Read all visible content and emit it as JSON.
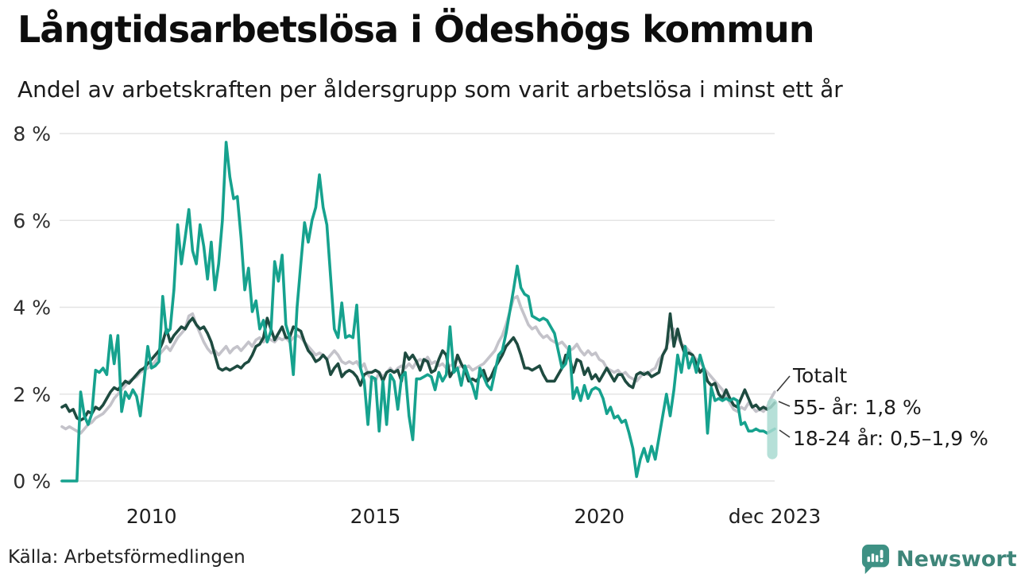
{
  "header": {
    "title": "Långtidsarbetslösa i Ödeshögs kommun",
    "subtitle": "Andel av arbetskraften per åldersgrupp som varit arbetslösa i minst ett år"
  },
  "footer": {
    "source": "Källa: Arbetsförmedlingen",
    "brand_name": "Newsworthy",
    "brand_icon": "newsworthy-pin-icon",
    "brand_color": "#3e9184",
    "brand_text_color": "#3e8579"
  },
  "annotations": {
    "totalt": "Totalt",
    "age55": "55- år: 1,8 %",
    "age1824": "18-24 år: 0,5–1,9 %"
  },
  "chart_data": {
    "type": "line",
    "title": "Långtidsarbetslösa i Ödeshögs kommun",
    "x_unit": "month",
    "x_start": "2008-01",
    "x_end": "2023-12",
    "ylim": [
      0,
      8
    ],
    "grid": true,
    "yticks": [
      {
        "value": 8,
        "label": "8 %"
      },
      {
        "value": 6,
        "label": "6 %"
      },
      {
        "value": 4,
        "label": "4 %"
      },
      {
        "value": 2,
        "label": "2 %"
      },
      {
        "value": 0,
        "label": "0 %"
      }
    ],
    "xticks": [
      {
        "month_index": 24,
        "label": "2010"
      },
      {
        "month_index": 84,
        "label": "2015"
      },
      {
        "month_index": 144,
        "label": "2020"
      },
      {
        "month_index": 191,
        "label": "dec 2023"
      }
    ],
    "legend_position": "end-of-line-labels-right",
    "series": [
      {
        "id": "totalt",
        "name": "Totalt",
        "color": "#c4c3ca",
        "last_value": 2.05,
        "values": [
          1.25,
          1.2,
          1.25,
          1.2,
          1.15,
          1.1,
          1.2,
          1.3,
          1.35,
          1.45,
          1.5,
          1.55,
          1.65,
          1.75,
          1.9,
          2.0,
          2.1,
          2.2,
          2.3,
          2.35,
          2.4,
          2.5,
          2.55,
          2.6,
          2.65,
          2.75,
          2.9,
          3.0,
          3.1,
          3.0,
          3.15,
          3.3,
          3.4,
          3.5,
          3.8,
          3.85,
          3.6,
          3.4,
          3.2,
          3.05,
          2.95,
          3.0,
          2.9,
          3.0,
          3.1,
          2.95,
          3.05,
          3.1,
          3.0,
          3.1,
          3.2,
          3.1,
          3.25,
          3.3,
          3.2,
          3.3,
          3.25,
          3.2,
          3.3,
          3.25,
          3.3,
          3.2,
          3.3,
          3.35,
          3.3,
          3.2,
          3.1,
          3.0,
          2.9,
          2.95,
          2.9,
          2.8,
          2.9,
          3.0,
          2.9,
          2.75,
          2.7,
          2.75,
          2.7,
          2.75,
          2.6,
          2.7,
          2.45,
          2.35,
          2.3,
          2.5,
          2.4,
          2.5,
          2.6,
          2.5,
          2.6,
          2.65,
          2.6,
          2.7,
          2.6,
          2.75,
          2.8,
          2.75,
          2.85,
          2.7,
          2.75,
          2.65,
          2.7,
          2.6,
          2.65,
          2.7,
          2.6,
          2.65,
          2.6,
          2.65,
          2.55,
          2.6,
          2.65,
          2.7,
          2.8,
          2.9,
          3.0,
          3.2,
          3.35,
          3.6,
          3.9,
          4.2,
          4.25,
          4.0,
          3.8,
          3.6,
          3.5,
          3.55,
          3.4,
          3.3,
          3.35,
          3.25,
          3.2,
          3.15,
          3.2,
          3.1,
          3.0,
          3.05,
          3.15,
          3.0,
          2.9,
          3.0,
          2.9,
          2.95,
          2.8,
          2.75,
          2.6,
          2.55,
          2.5,
          2.55,
          2.45,
          2.5,
          2.4,
          2.35,
          2.3,
          2.4,
          2.5,
          2.45,
          2.55,
          2.6,
          2.8,
          2.9,
          3.1,
          3.3,
          3.5,
          3.3,
          3.15,
          3.1,
          3.0,
          2.9,
          2.8,
          2.75,
          2.6,
          2.5,
          2.4,
          2.3,
          2.2,
          2.1,
          1.95,
          1.8,
          1.65,
          1.6,
          1.7,
          1.65,
          1.8,
          1.7,
          1.6,
          1.65,
          1.6,
          1.7,
          1.9,
          2.05
        ]
      },
      {
        "id": "55-ar",
        "name": "55- år",
        "color": "#1e4b40",
        "last_value": 1.8,
        "values": [
          1.7,
          1.75,
          1.6,
          1.65,
          1.45,
          1.4,
          1.45,
          1.6,
          1.55,
          1.7,
          1.65,
          1.75,
          1.9,
          2.05,
          2.15,
          2.1,
          2.2,
          2.3,
          2.25,
          2.35,
          2.45,
          2.55,
          2.6,
          2.7,
          2.8,
          2.9,
          3.0,
          3.2,
          3.5,
          3.2,
          3.35,
          3.45,
          3.55,
          3.5,
          3.65,
          3.75,
          3.6,
          3.5,
          3.55,
          3.4,
          3.2,
          2.9,
          2.6,
          2.55,
          2.6,
          2.55,
          2.6,
          2.65,
          2.6,
          2.7,
          2.75,
          2.9,
          3.1,
          3.15,
          3.3,
          3.75,
          3.5,
          3.25,
          3.4,
          3.55,
          3.3,
          3.3,
          3.55,
          3.5,
          3.45,
          3.2,
          3.0,
          2.9,
          2.75,
          2.8,
          2.9,
          2.8,
          2.45,
          2.6,
          2.7,
          2.4,
          2.5,
          2.55,
          2.5,
          2.4,
          2.2,
          2.45,
          2.5,
          2.5,
          2.55,
          2.5,
          2.3,
          2.5,
          2.55,
          2.5,
          2.55,
          2.3,
          2.95,
          2.8,
          2.9,
          2.75,
          2.55,
          2.8,
          2.75,
          2.5,
          2.55,
          2.8,
          3.0,
          2.9,
          2.4,
          2.55,
          2.9,
          2.7,
          2.55,
          2.3,
          2.35,
          2.3,
          2.4,
          2.55,
          2.3,
          2.4,
          2.6,
          2.75,
          2.9,
          3.1,
          3.2,
          3.3,
          3.15,
          2.9,
          2.6,
          2.6,
          2.55,
          2.6,
          2.65,
          2.45,
          2.3,
          2.3,
          2.3,
          2.45,
          2.6,
          2.9,
          2.85,
          2.5,
          2.8,
          2.75,
          2.45,
          2.6,
          2.35,
          2.45,
          2.3,
          2.45,
          2.6,
          2.45,
          2.3,
          2.45,
          2.45,
          2.3,
          2.2,
          2.15,
          2.45,
          2.5,
          2.45,
          2.5,
          2.4,
          2.45,
          2.5,
          2.9,
          3.05,
          3.85,
          3.1,
          3.5,
          3.15,
          2.9,
          2.95,
          2.9,
          2.7,
          2.5,
          2.6,
          2.3,
          2.2,
          2.25,
          2.0,
          1.9,
          2.1,
          1.9,
          1.75,
          1.7,
          1.9,
          2.1,
          1.9,
          1.7,
          1.75,
          1.65,
          1.7,
          1.65,
          1.7,
          1.8
        ]
      },
      {
        "id": "18-24-ar",
        "name": "18-24 år",
        "color": "#16a28e",
        "last_value": 1.2,
        "values": [
          0,
          0,
          0,
          0,
          0,
          2.05,
          1.5,
          1.3,
          1.55,
          2.55,
          2.5,
          2.6,
          2.45,
          3.35,
          2.7,
          3.35,
          1.6,
          2.05,
          1.9,
          2.1,
          1.95,
          1.5,
          2.3,
          3.1,
          2.6,
          2.65,
          2.75,
          4.25,
          3.4,
          3.5,
          4.4,
          5.9,
          5.0,
          5.6,
          6.25,
          5.3,
          5.0,
          5.9,
          5.4,
          4.65,
          5.5,
          4.4,
          5.0,
          6.0,
          7.8,
          7.0,
          6.5,
          6.55,
          5.6,
          4.4,
          4.9,
          3.9,
          4.15,
          3.5,
          3.7,
          3.2,
          3.45,
          5.05,
          4.6,
          5.2,
          3.6,
          3.3,
          2.45,
          4.0,
          5.0,
          5.95,
          5.5,
          6.0,
          6.3,
          7.05,
          6.3,
          5.9,
          4.7,
          3.5,
          3.3,
          4.1,
          3.3,
          3.35,
          3.3,
          4.05,
          2.6,
          2.3,
          1.3,
          2.4,
          2.35,
          1.15,
          2.3,
          1.3,
          2.45,
          2.3,
          1.65,
          2.4,
          2.5,
          1.5,
          0.95,
          2.35,
          2.35,
          2.4,
          2.45,
          2.4,
          2.1,
          2.5,
          2.3,
          2.45,
          3.55,
          2.5,
          2.6,
          2.2,
          2.65,
          2.4,
          2.2,
          1.9,
          2.6,
          2.4,
          2.2,
          2.1,
          2.5,
          2.9,
          3.0,
          3.4,
          3.9,
          4.4,
          4.95,
          4.45,
          4.3,
          4.25,
          3.8,
          3.75,
          3.7,
          3.75,
          3.7,
          3.55,
          3.4,
          3.0,
          2.6,
          2.7,
          3.1,
          1.9,
          2.15,
          1.85,
          2.2,
          1.9,
          2.1,
          2.15,
          2.1,
          1.9,
          1.55,
          1.7,
          1.45,
          1.5,
          1.35,
          1.4,
          1.1,
          0.75,
          0.1,
          0.5,
          0.75,
          0.45,
          0.8,
          0.5,
          1.0,
          1.5,
          2.0,
          1.5,
          2.1,
          2.9,
          2.5,
          3.1,
          2.6,
          2.85,
          2.5,
          2.9,
          2.6,
          1.1,
          2.15,
          1.85,
          1.9,
          1.85,
          1.9,
          1.85,
          1.9,
          1.85,
          1.3,
          1.35,
          1.15,
          1.15,
          1.2,
          1.15,
          1.15,
          1.1,
          1.15,
          1.2
        ]
      }
    ],
    "uncertainty_band": {
      "series_id": "18-24-ar",
      "low": 0.5,
      "high": 1.9,
      "label": "0,5–1,9 %",
      "color": "#a9dbd1"
    },
    "end_labels": [
      "Totalt",
      "55- år: 1,8 %",
      "18-24 år: 0,5–1,9 %"
    ],
    "colors": {
      "grid": "#e4e4e4",
      "axis_text": "#2e2e2e",
      "connector": "#3c3c3c"
    }
  }
}
